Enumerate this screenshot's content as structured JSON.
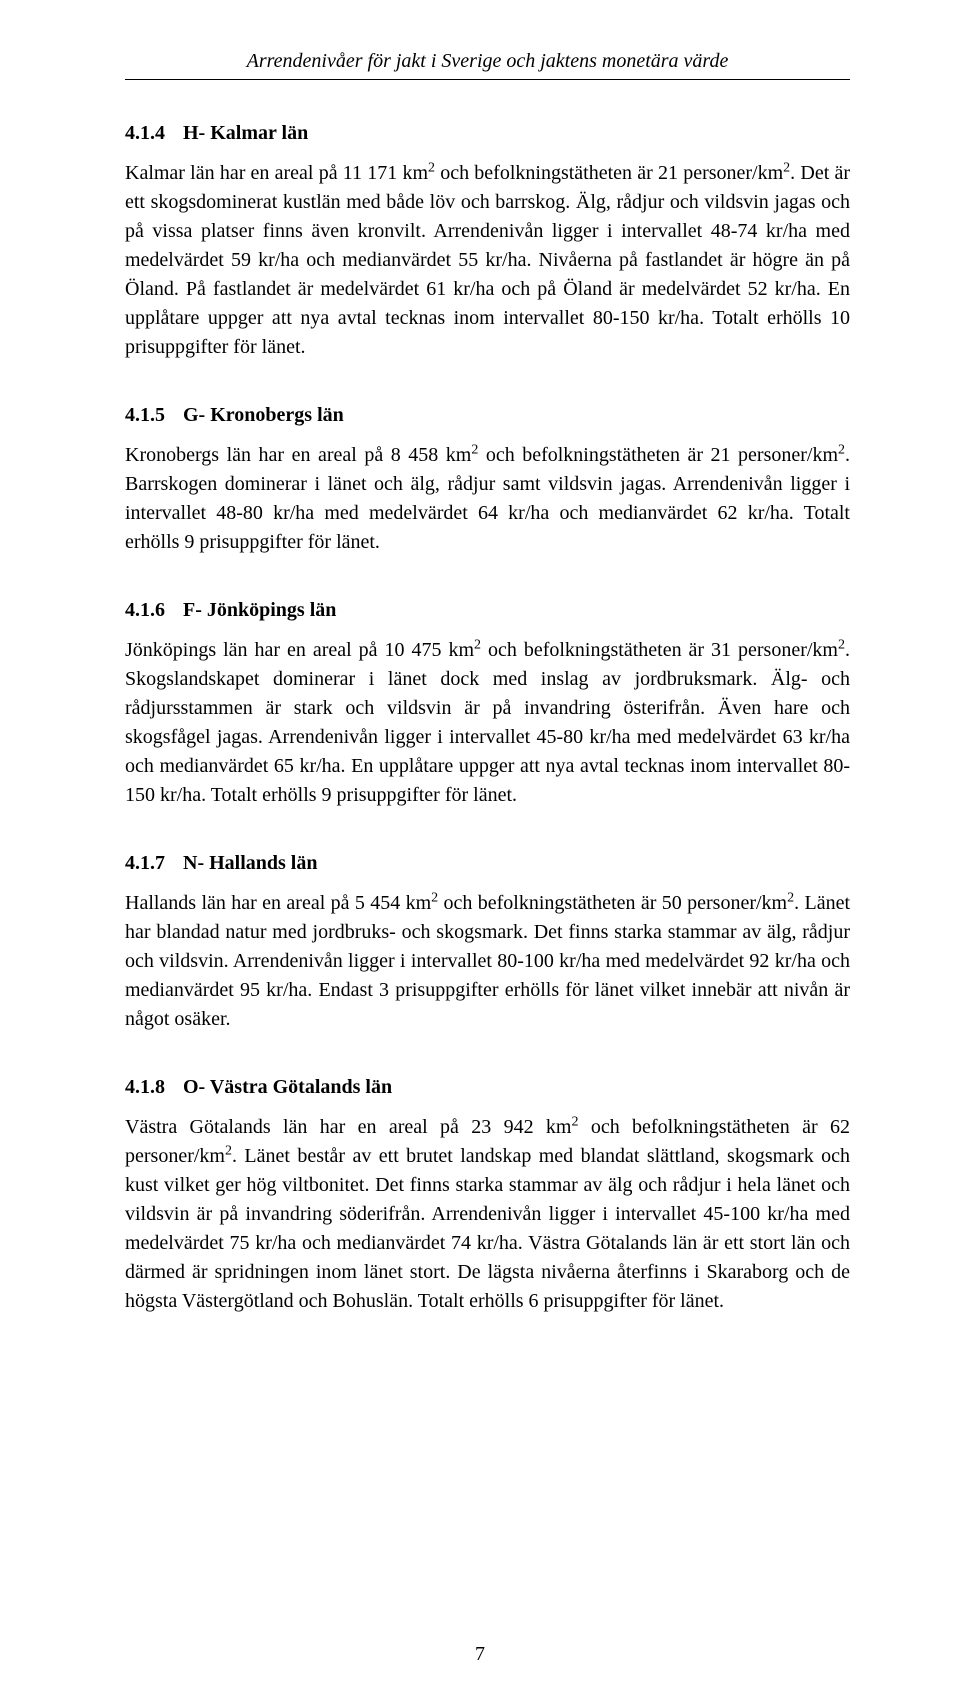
{
  "runningHead": "Arrendenivåer för jakt i Sverige och jaktens monetära värde",
  "pageNumber": "7",
  "sections": [
    {
      "num": "4.1.4",
      "title": "H- Kalmar län",
      "body_pre1": "Kalmar län har en areal på 11 171 km",
      "sup1": "2",
      "body_mid1": " och befolkningstätheten är 21 personer/km",
      "sup2": "2",
      "body_post": ". Det är ett skogsdominerat kustlän med både löv och barrskog. Älg, rådjur och vildsvin jagas och på vissa platser finns även kronvilt. Arrendenivån ligger i intervallet 48-74 kr/ha med medelvärdet 59 kr/ha och medianvärdet 55 kr/ha. Nivåerna på fastlandet är högre än på Öland. På fastlandet är medelvärdet 61 kr/ha och på Öland är medelvärdet 52 kr/ha. En upplåtare uppger att nya avtal tecknas inom intervallet 80-150 kr/ha. Totalt erhölls 10 prisuppgifter för länet."
    },
    {
      "num": "4.1.5",
      "title": "G- Kronobergs län",
      "body_pre1": "Kronobergs län har en areal på 8 458 km",
      "sup1": "2",
      "body_mid1": " och befolkningstätheten är 21 personer/km",
      "sup2": "2",
      "body_post": ". Barrskogen dominerar i länet och älg, rådjur samt vildsvin jagas. Arrendenivån ligger i intervallet 48-80 kr/ha med medelvärdet 64 kr/ha och medianvärdet 62 kr/ha. Totalt erhölls 9 prisuppgifter för länet."
    },
    {
      "num": "4.1.6",
      "title": "F- Jönköpings län",
      "body_pre1": "Jönköpings län har en areal på 10 475 km",
      "sup1": "2",
      "body_mid1": " och befolkningstätheten är 31 personer/km",
      "sup2": "2",
      "body_post": ". Skogslandskapet dominerar i länet dock med inslag av jordbruksmark. Älg- och rådjursstammen är stark och vildsvin är på invandring österifrån. Även hare och skogsfågel jagas. Arrendenivån ligger i intervallet 45-80 kr/ha med medelvärdet 63 kr/ha och medianvärdet 65 kr/ha. En upplåtare uppger att nya avtal tecknas inom intervallet 80-150 kr/ha. Totalt erhölls 9 prisuppgifter för länet."
    },
    {
      "num": "4.1.7",
      "title": "N- Hallands län",
      "body_pre1": "Hallands län har en areal på 5 454 km",
      "sup1": "2",
      "body_mid1": " och befolkningstätheten är 50 personer/km",
      "sup2": "2",
      "body_post": ". Länet har blandad natur med jordbruks- och skogsmark. Det finns starka stammar av älg, rådjur och vildsvin. Arrendenivån ligger i intervallet 80-100 kr/ha med medelvärdet 92 kr/ha och medianvärdet 95 kr/ha. Endast 3 prisuppgifter erhölls för länet vilket innebär att nivån är något osäker."
    },
    {
      "num": "4.1.8",
      "title": "O- Västra Götalands län",
      "body_pre1": "Västra Götalands län har en areal på 23 942 km",
      "sup1": "2",
      "body_mid1": " och befolkningstätheten är 62 personer/km",
      "sup2": "2",
      "body_post": ". Länet består av ett brutet landskap med blandat slättland, skogsmark och kust vilket ger hög viltbonitet. Det finns starka stammar av älg och rådjur i hela länet och vildsvin är på invandring söderifrån. Arrendenivån ligger i intervallet 45-100 kr/ha med medelvärdet 75 kr/ha och medianvärdet 74 kr/ha. Västra Götalands län är ett stort län och därmed är spridningen inom länet stort. De lägsta nivåerna återfinns i Skaraborg och de högsta Västergötland och Bohuslän. Totalt erhölls 6 prisuppgifter för länet."
    }
  ]
}
